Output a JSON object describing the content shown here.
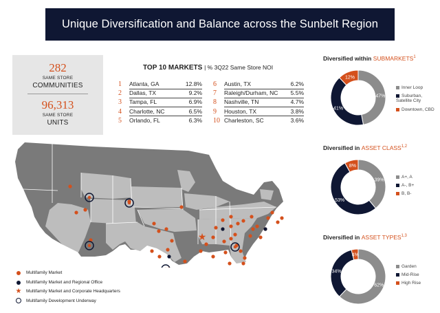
{
  "banner": {
    "title": "Unique Diversification and Balance across the Sunbelt Region"
  },
  "stats": {
    "communities_num": "282",
    "communities_sub": "SAME STORE",
    "communities_label": "COMMUNITIES",
    "units_num": "96,313",
    "units_sub": "SAME STORE",
    "units_label": "UNITS"
  },
  "top_markets": {
    "title": "TOP 10 MARKETS",
    "subtitle": "| % 3Q22 Same Store NOI",
    "left": [
      {
        "rank": "1",
        "city": "Atlanta, GA",
        "pct": "12.8%"
      },
      {
        "rank": "2",
        "city": "Dallas, TX",
        "pct": "9.2%"
      },
      {
        "rank": "3",
        "city": "Tampa, FL",
        "pct": "6.9%"
      },
      {
        "rank": "4",
        "city": "Charlotte, NC",
        "pct": "6.5%"
      },
      {
        "rank": "5",
        "city": "Orlando, FL",
        "pct": "6.3%"
      }
    ],
    "right": [
      {
        "rank": "6",
        "city": "Austin, TX",
        "pct": "6.2%"
      },
      {
        "rank": "7",
        "city": "Raleigh/Durham, NC",
        "pct": "5.5%"
      },
      {
        "rank": "8",
        "city": "Nashville, TN",
        "pct": "4.7%"
      },
      {
        "rank": "9",
        "city": "Houston, TX",
        "pct": "3.8%"
      },
      {
        "rank": "10",
        "city": "Charleston, SC",
        "pct": "3.6%"
      }
    ]
  },
  "donuts": [
    {
      "title_pre": "Diversified within ",
      "title_hl": "SUBMARKETS",
      "title_sup": "1",
      "segments": [
        {
          "label": "Inner Loop",
          "value": 47,
          "text": "47%",
          "color": "#8c8c8c"
        },
        {
          "label": "Suburban, Satellite City",
          "value": 41,
          "text": "41%",
          "color": "#0f1733"
        },
        {
          "label": "Downtown, CBD",
          "value": 12,
          "text": "12%",
          "color": "#d4501c"
        }
      ]
    },
    {
      "title_pre": "Diversified in ",
      "title_hl": "ASSET CLASS",
      "title_sup": "1,2",
      "segments": [
        {
          "label": "A+, A",
          "value": 39,
          "text": "39%",
          "color": "#8c8c8c"
        },
        {
          "label": "A-, B+",
          "value": 53,
          "text": "53%",
          "color": "#0f1733"
        },
        {
          "label": "B, B-",
          "value": 8,
          "text": "8%",
          "color": "#d4501c"
        }
      ]
    },
    {
      "title_pre": "Diversified in ",
      "title_hl": "ASSET TYPES",
      "title_sup": "1,3",
      "segments": [
        {
          "label": "Garden",
          "value": 62,
          "text": "62%",
          "color": "#8c8c8c"
        },
        {
          "label": "Mid-Rise",
          "value": 34,
          "text": "34%",
          "color": "#0f1733"
        },
        {
          "label": "High Rise",
          "value": 4,
          "text": "4%",
          "color": "#d4501c"
        }
      ]
    }
  ],
  "map_legend": {
    "multifamily": "Multifamily Market",
    "regional": "Multifamily Market and Regional Office",
    "hq": "Multifamily Market and Corporate Headquarters",
    "development": "Multifamily Development Underway"
  },
  "colors": {
    "navy": "#0f1733",
    "orange": "#d4501c",
    "gray": "#8c8c8c",
    "light_gray": "#b9b9b9"
  }
}
